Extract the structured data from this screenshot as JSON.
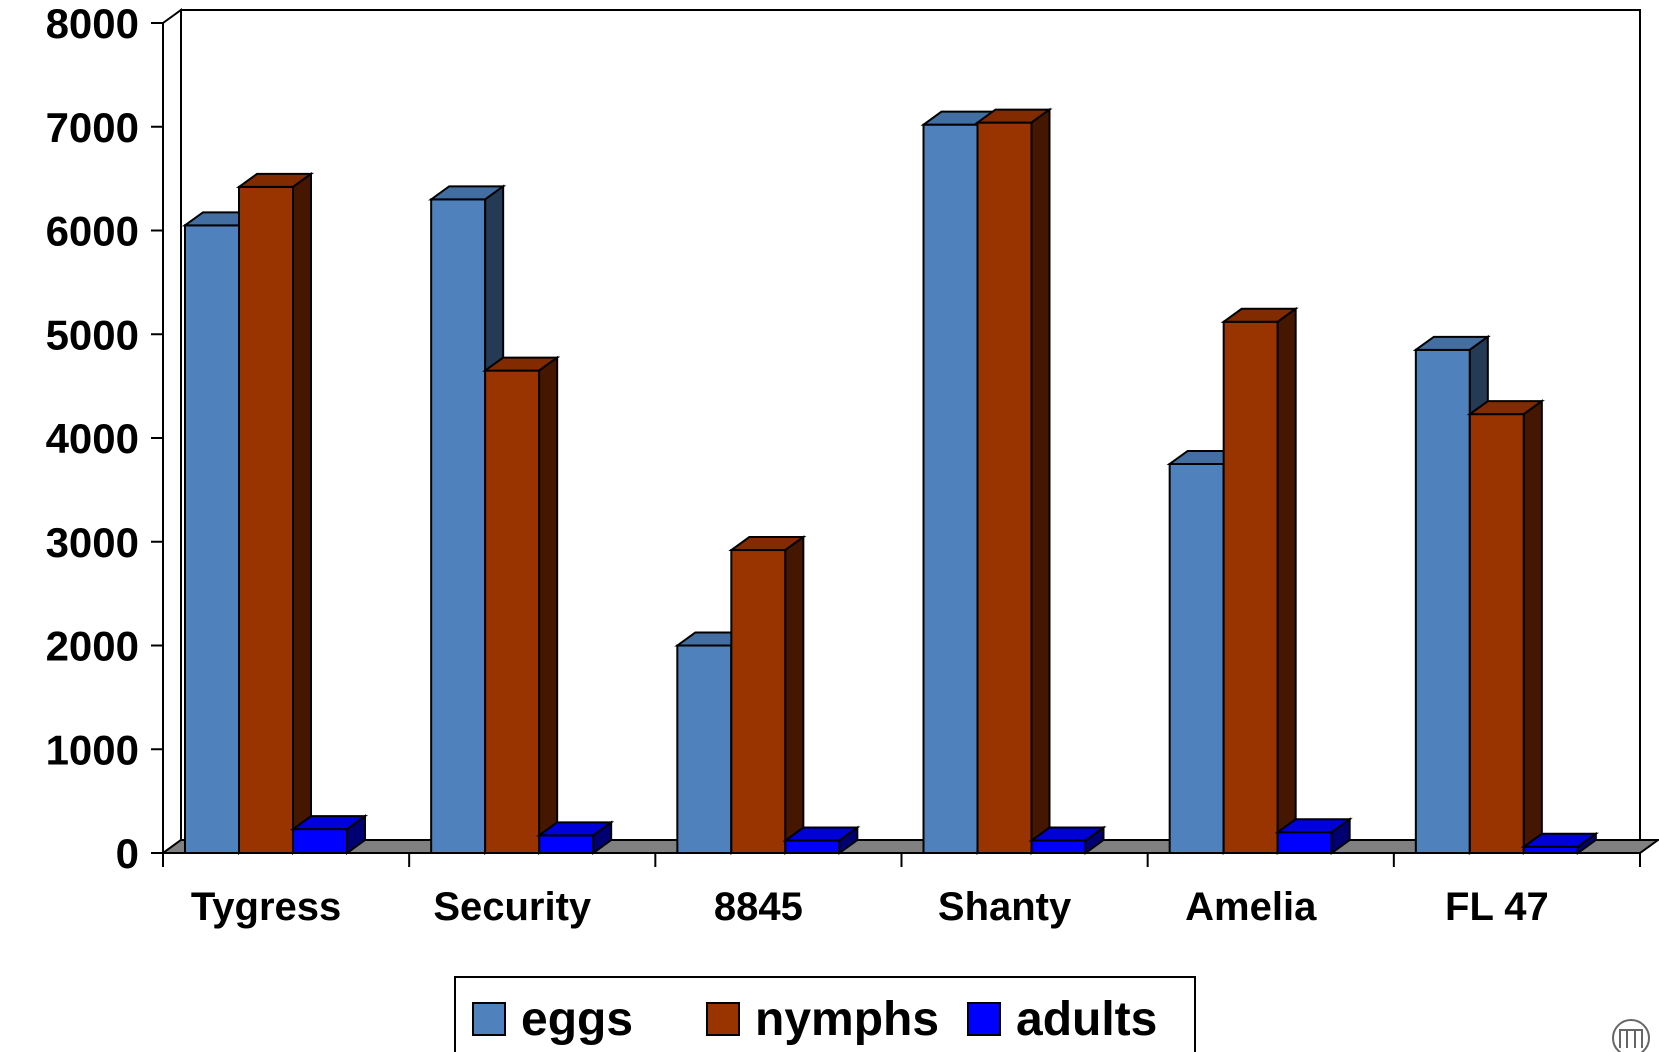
{
  "chart_data": {
    "type": "bar",
    "categories": [
      "Tygress",
      "Security",
      "8845",
      "Shanty",
      "Amelia",
      "FL 47"
    ],
    "series": [
      {
        "name": "eggs",
        "values": [
          6050,
          6300,
          2000,
          7020,
          3750,
          4850
        ],
        "color": "#4F81BD"
      },
      {
        "name": "nymphs",
        "values": [
          6420,
          4650,
          2920,
          7040,
          5120,
          4230
        ],
        "color": "#993300"
      },
      {
        "name": "adults",
        "values": [
          230,
          170,
          120,
          120,
          200,
          60
        ],
        "color": "#0000FF"
      }
    ],
    "ylim": [
      0,
      8000
    ],
    "yticks": [
      "0",
      "1000",
      "2000",
      "3000",
      "4000",
      "5000",
      "6000",
      "7000",
      "8000"
    ],
    "grid": false,
    "legend_position": "bottom",
    "style": "3d-column"
  }
}
